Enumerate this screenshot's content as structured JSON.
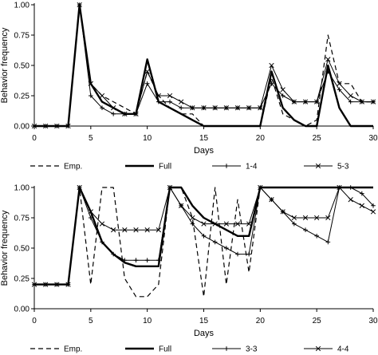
{
  "chart_data": [
    {
      "type": "line",
      "xlabel": "Days",
      "ylabel": "Behavior frequency",
      "xlim": [
        0,
        30
      ],
      "ylim": [
        0,
        1
      ],
      "xticks": [
        0,
        5,
        10,
        15,
        20,
        25,
        30
      ],
      "yticks": [
        "0.00",
        "0.25",
        "0.50",
        "0.75",
        "1.00"
      ],
      "grid": false,
      "legend_position": "bottom",
      "series": [
        {
          "name": "Emp.",
          "style": "dashed",
          "values": [
            [
              0,
              0
            ],
            [
              1,
              0
            ],
            [
              2,
              0
            ],
            [
              3,
              0
            ],
            [
              4,
              1.0
            ],
            [
              5,
              0.35
            ],
            [
              6,
              0.25
            ],
            [
              7,
              0.2
            ],
            [
              8,
              0.15
            ],
            [
              9,
              0.1
            ],
            [
              10,
              0.45
            ],
            [
              11,
              0.25
            ],
            [
              12,
              0.15
            ],
            [
              13,
              0.1
            ],
            [
              14,
              0.1
            ],
            [
              15,
              0
            ],
            [
              16,
              0
            ],
            [
              17,
              0
            ],
            [
              18,
              0
            ],
            [
              19,
              0
            ],
            [
              20,
              0
            ],
            [
              21,
              0.4
            ],
            [
              22,
              0.1
            ],
            [
              23,
              0.05
            ],
            [
              24,
              0
            ],
            [
              25,
              0.05
            ],
            [
              26,
              0.75
            ],
            [
              27,
              0.35
            ],
            [
              28,
              0.35
            ],
            [
              29,
              0.2
            ],
            [
              30,
              0.2
            ]
          ]
        },
        {
          "name": "Full",
          "style": "bold",
          "values": [
            [
              0,
              0
            ],
            [
              1,
              0
            ],
            [
              2,
              0
            ],
            [
              3,
              0
            ],
            [
              4,
              1.0
            ],
            [
              5,
              0.35
            ],
            [
              6,
              0.2
            ],
            [
              7,
              0.15
            ],
            [
              8,
              0.1
            ],
            [
              9,
              0.1
            ],
            [
              10,
              0.55
            ],
            [
              11,
              0.2
            ],
            [
              12,
              0.15
            ],
            [
              13,
              0.1
            ],
            [
              14,
              0.05
            ],
            [
              15,
              0
            ],
            [
              16,
              0
            ],
            [
              17,
              0
            ],
            [
              18,
              0
            ],
            [
              19,
              0
            ],
            [
              20,
              0
            ],
            [
              21,
              0.45
            ],
            [
              22,
              0.15
            ],
            [
              23,
              0.05
            ],
            [
              24,
              0
            ],
            [
              25,
              0
            ],
            [
              26,
              0.5
            ],
            [
              27,
              0.15
            ],
            [
              28,
              0
            ],
            [
              29,
              0
            ],
            [
              30,
              0
            ]
          ]
        },
        {
          "name": "1-4",
          "style": "plus",
          "values": [
            [
              0,
              0
            ],
            [
              1,
              0
            ],
            [
              2,
              0
            ],
            [
              3,
              0
            ],
            [
              4,
              1.0
            ],
            [
              5,
              0.25
            ],
            [
              6,
              0.15
            ],
            [
              7,
              0.1
            ],
            [
              8,
              0.1
            ],
            [
              9,
              0.1
            ],
            [
              10,
              0.35
            ],
            [
              11,
              0.2
            ],
            [
              12,
              0.2
            ],
            [
              13,
              0.15
            ],
            [
              14,
              0.15
            ],
            [
              15,
              0.15
            ],
            [
              16,
              0.15
            ],
            [
              17,
              0.15
            ],
            [
              18,
              0.15
            ],
            [
              19,
              0.15
            ],
            [
              20,
              0.15
            ],
            [
              21,
              0.35
            ],
            [
              22,
              0.25
            ],
            [
              23,
              0.2
            ],
            [
              24,
              0.2
            ],
            [
              25,
              0.2
            ],
            [
              26,
              0.45
            ],
            [
              27,
              0.3
            ],
            [
              28,
              0.2
            ],
            [
              29,
              0.2
            ],
            [
              30,
              0.2
            ]
          ]
        },
        {
          "name": "5-3",
          "style": "x",
          "values": [
            [
              0,
              0
            ],
            [
              1,
              0
            ],
            [
              2,
              0
            ],
            [
              3,
              0
            ],
            [
              4,
              1.0
            ],
            [
              5,
              0.35
            ],
            [
              6,
              0.25
            ],
            [
              7,
              0.15
            ],
            [
              8,
              0.1
            ],
            [
              9,
              0.1
            ],
            [
              10,
              0.45
            ],
            [
              11,
              0.25
            ],
            [
              12,
              0.25
            ],
            [
              13,
              0.2
            ],
            [
              14,
              0.15
            ],
            [
              15,
              0.15
            ],
            [
              16,
              0.15
            ],
            [
              17,
              0.15
            ],
            [
              18,
              0.15
            ],
            [
              19,
              0.15
            ],
            [
              20,
              0.15
            ],
            [
              21,
              0.5
            ],
            [
              22,
              0.3
            ],
            [
              23,
              0.2
            ],
            [
              24,
              0.2
            ],
            [
              25,
              0.2
            ],
            [
              26,
              0.55
            ],
            [
              27,
              0.35
            ],
            [
              28,
              0.25
            ],
            [
              29,
              0.2
            ],
            [
              30,
              0.2
            ]
          ]
        }
      ]
    },
    {
      "type": "line",
      "xlabel": "Days",
      "ylabel": "Behavior frequency",
      "xlim": [
        0,
        30
      ],
      "ylim": [
        0,
        1
      ],
      "xticks": [
        0,
        5,
        10,
        15,
        20,
        25,
        30
      ],
      "yticks": [
        "0.00",
        "0.25",
        "0.50",
        "0.75",
        "1.00"
      ],
      "grid": false,
      "legend_position": "bottom",
      "series": [
        {
          "name": "Emp.",
          "style": "dashed",
          "values": [
            [
              0,
              0.2
            ],
            [
              1,
              0.2
            ],
            [
              2,
              0.2
            ],
            [
              3,
              0.2
            ],
            [
              4,
              1.0
            ],
            [
              5,
              0.2
            ],
            [
              6,
              1.0
            ],
            [
              7,
              1.0
            ],
            [
              8,
              0.25
            ],
            [
              9,
              0.1
            ],
            [
              10,
              0.1
            ],
            [
              11,
              0.2
            ],
            [
              12,
              1.0
            ],
            [
              13,
              1.0
            ],
            [
              14,
              0.75
            ],
            [
              15,
              0.1
            ],
            [
              16,
              1.0
            ],
            [
              17,
              0.2
            ],
            [
              18,
              0.9
            ],
            [
              19,
              0.3
            ],
            [
              20,
              1.0
            ],
            [
              21,
              1.0
            ],
            [
              22,
              1.0
            ],
            [
              23,
              1.0
            ],
            [
              24,
              1.0
            ],
            [
              25,
              1.0
            ],
            [
              26,
              1.0
            ],
            [
              27,
              1.0
            ],
            [
              28,
              1.0
            ],
            [
              29,
              1.0
            ],
            [
              30,
              1.0
            ]
          ]
        },
        {
          "name": "Full",
          "style": "bold",
          "values": [
            [
              0,
              0.2
            ],
            [
              1,
              0.2
            ],
            [
              2,
              0.2
            ],
            [
              3,
              0.2
            ],
            [
              4,
              1.0
            ],
            [
              5,
              0.8
            ],
            [
              6,
              0.55
            ],
            [
              7,
              0.45
            ],
            [
              8,
              0.38
            ],
            [
              9,
              0.35
            ],
            [
              10,
              0.35
            ],
            [
              11,
              0.35
            ],
            [
              12,
              1.0
            ],
            [
              13,
              1.0
            ],
            [
              14,
              0.85
            ],
            [
              15,
              0.75
            ],
            [
              16,
              0.7
            ],
            [
              17,
              0.65
            ],
            [
              18,
              0.6
            ],
            [
              19,
              0.6
            ],
            [
              20,
              1.0
            ],
            [
              21,
              1.0
            ],
            [
              22,
              1.0
            ],
            [
              23,
              1.0
            ],
            [
              24,
              1.0
            ],
            [
              25,
              1.0
            ],
            [
              26,
              1.0
            ],
            [
              27,
              1.0
            ],
            [
              28,
              1.0
            ],
            [
              29,
              1.0
            ],
            [
              30,
              1.0
            ]
          ]
        },
        {
          "name": "3-3",
          "style": "plus",
          "values": [
            [
              0,
              0.2
            ],
            [
              1,
              0.2
            ],
            [
              2,
              0.2
            ],
            [
              3,
              0.2
            ],
            [
              4,
              1.0
            ],
            [
              5,
              0.75
            ],
            [
              6,
              0.55
            ],
            [
              7,
              0.45
            ],
            [
              8,
              0.4
            ],
            [
              9,
              0.4
            ],
            [
              10,
              0.4
            ],
            [
              11,
              0.4
            ],
            [
              12,
              1.0
            ],
            [
              13,
              0.85
            ],
            [
              14,
              0.7
            ],
            [
              15,
              0.6
            ],
            [
              16,
              0.55
            ],
            [
              17,
              0.5
            ],
            [
              18,
              0.45
            ],
            [
              19,
              0.45
            ],
            [
              20,
              1.0
            ],
            [
              21,
              0.9
            ],
            [
              22,
              0.8
            ],
            [
              23,
              0.7
            ],
            [
              24,
              0.65
            ],
            [
              25,
              0.6
            ],
            [
              26,
              0.55
            ],
            [
              27,
              1.0
            ],
            [
              28,
              1.0
            ],
            [
              29,
              0.95
            ],
            [
              30,
              0.85
            ]
          ]
        },
        {
          "name": "4-4",
          "style": "x",
          "values": [
            [
              0,
              0.2
            ],
            [
              1,
              0.2
            ],
            [
              2,
              0.2
            ],
            [
              3,
              0.2
            ],
            [
              4,
              1.0
            ],
            [
              5,
              0.8
            ],
            [
              6,
              0.7
            ],
            [
              7,
              0.65
            ],
            [
              8,
              0.65
            ],
            [
              9,
              0.65
            ],
            [
              10,
              0.65
            ],
            [
              11,
              0.65
            ],
            [
              12,
              1.0
            ],
            [
              13,
              0.85
            ],
            [
              14,
              0.75
            ],
            [
              15,
              0.7
            ],
            [
              16,
              0.7
            ],
            [
              17,
              0.7
            ],
            [
              18,
              0.7
            ],
            [
              19,
              0.7
            ],
            [
              20,
              1.0
            ],
            [
              21,
              0.9
            ],
            [
              22,
              0.8
            ],
            [
              23,
              0.75
            ],
            [
              24,
              0.75
            ],
            [
              25,
              0.75
            ],
            [
              26,
              0.75
            ],
            [
              27,
              1.0
            ],
            [
              28,
              0.9
            ],
            [
              29,
              0.85
            ],
            [
              30,
              0.8
            ]
          ]
        }
      ]
    }
  ]
}
